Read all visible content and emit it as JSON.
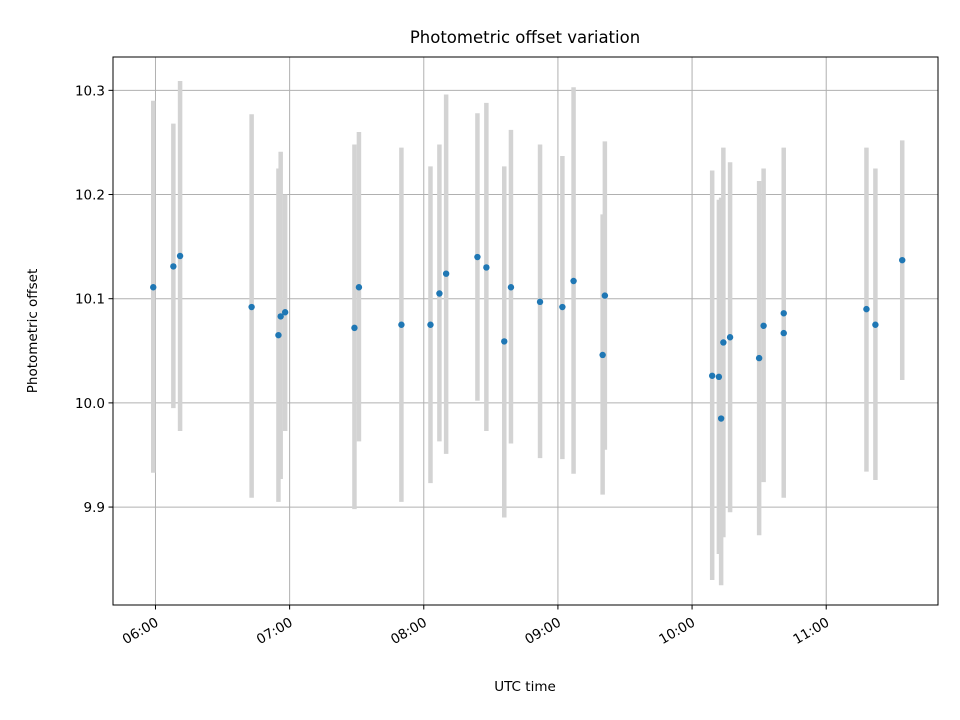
{
  "chart_data": {
    "type": "scatter",
    "title": "Photometric offset variation",
    "xlabel": "UTC time",
    "ylabel": "Photometric offset",
    "xlim": [
      "05:41",
      "11:50"
    ],
    "ylim": [
      9.806,
      10.332
    ],
    "x_ticks": [
      "06:00",
      "07:00",
      "08:00",
      "09:00",
      "10:00",
      "11:00"
    ],
    "y_ticks": [
      9.9,
      10.0,
      10.1,
      10.2,
      10.3
    ],
    "y_tick_labels": [
      "9.9",
      "10.0",
      "10.1",
      "10.2",
      "10.3"
    ],
    "grid": true,
    "error_bars": true,
    "marker_color": "#1f77b4",
    "error_bar_color": "#d3d3d3",
    "points": [
      {
        "x": "05:59",
        "y": 10.111,
        "ylo": 9.933,
        "yhi": 10.29
      },
      {
        "x": "06:08",
        "y": 10.131,
        "ylo": 9.995,
        "yhi": 10.268
      },
      {
        "x": "06:11",
        "y": 10.141,
        "ylo": 9.973,
        "yhi": 10.309
      },
      {
        "x": "06:43",
        "y": 10.092,
        "ylo": 9.909,
        "yhi": 10.277
      },
      {
        "x": "06:55",
        "y": 10.065,
        "ylo": 9.905,
        "yhi": 10.225
      },
      {
        "x": "06:56",
        "y": 10.083,
        "ylo": 9.927,
        "yhi": 10.241
      },
      {
        "x": "06:58",
        "y": 10.087,
        "ylo": 9.973,
        "yhi": 10.2
      },
      {
        "x": "07:29",
        "y": 10.072,
        "ylo": 9.898,
        "yhi": 10.248
      },
      {
        "x": "07:31",
        "y": 10.111,
        "ylo": 9.963,
        "yhi": 10.26
      },
      {
        "x": "07:50",
        "y": 10.075,
        "ylo": 9.905,
        "yhi": 10.245
      },
      {
        "x": "08:03",
        "y": 10.075,
        "ylo": 9.923,
        "yhi": 10.227
      },
      {
        "x": "08:07",
        "y": 10.105,
        "ylo": 9.963,
        "yhi": 10.248
      },
      {
        "x": "08:10",
        "y": 10.124,
        "ylo": 9.951,
        "yhi": 10.296
      },
      {
        "x": "08:24",
        "y": 10.14,
        "ylo": 10.002,
        "yhi": 10.278
      },
      {
        "x": "08:28",
        "y": 10.13,
        "ylo": 9.973,
        "yhi": 10.288
      },
      {
        "x": "08:36",
        "y": 10.059,
        "ylo": 9.89,
        "yhi": 10.227
      },
      {
        "x": "08:39",
        "y": 10.111,
        "ylo": 9.961,
        "yhi": 10.262
      },
      {
        "x": "08:52",
        "y": 10.097,
        "ylo": 9.947,
        "yhi": 10.248
      },
      {
        "x": "09:02",
        "y": 10.092,
        "ylo": 9.946,
        "yhi": 10.237
      },
      {
        "x": "09:07",
        "y": 10.117,
        "ylo": 9.932,
        "yhi": 10.303
      },
      {
        "x": "09:20",
        "y": 10.046,
        "ylo": 9.912,
        "yhi": 10.181
      },
      {
        "x": "09:21",
        "y": 10.103,
        "ylo": 9.955,
        "yhi": 10.251
      },
      {
        "x": "10:09",
        "y": 10.026,
        "ylo": 9.83,
        "yhi": 10.223
      },
      {
        "x": "10:12",
        "y": 10.025,
        "ylo": 9.855,
        "yhi": 10.195
      },
      {
        "x": "10:13",
        "y": 9.985,
        "ylo": 9.825,
        "yhi": 10.197
      },
      {
        "x": "10:14",
        "y": 10.058,
        "ylo": 9.871,
        "yhi": 10.245
      },
      {
        "x": "10:17",
        "y": 10.063,
        "ylo": 9.895,
        "yhi": 10.231
      },
      {
        "x": "10:30",
        "y": 10.043,
        "ylo": 9.873,
        "yhi": 10.213
      },
      {
        "x": "10:32",
        "y": 10.074,
        "ylo": 9.924,
        "yhi": 10.225
      },
      {
        "x": "10:41",
        "y": 10.067,
        "ylo": 9.909,
        "yhi": 10.224
      },
      {
        "x": "10:41",
        "y": 10.086,
        "ylo": 9.927,
        "yhi": 10.245
      },
      {
        "x": "11:18",
        "y": 10.09,
        "ylo": 9.934,
        "yhi": 10.245
      },
      {
        "x": "11:22",
        "y": 10.075,
        "ylo": 9.926,
        "yhi": 10.225
      },
      {
        "x": "11:34",
        "y": 10.137,
        "ylo": 10.022,
        "yhi": 10.252
      }
    ]
  }
}
